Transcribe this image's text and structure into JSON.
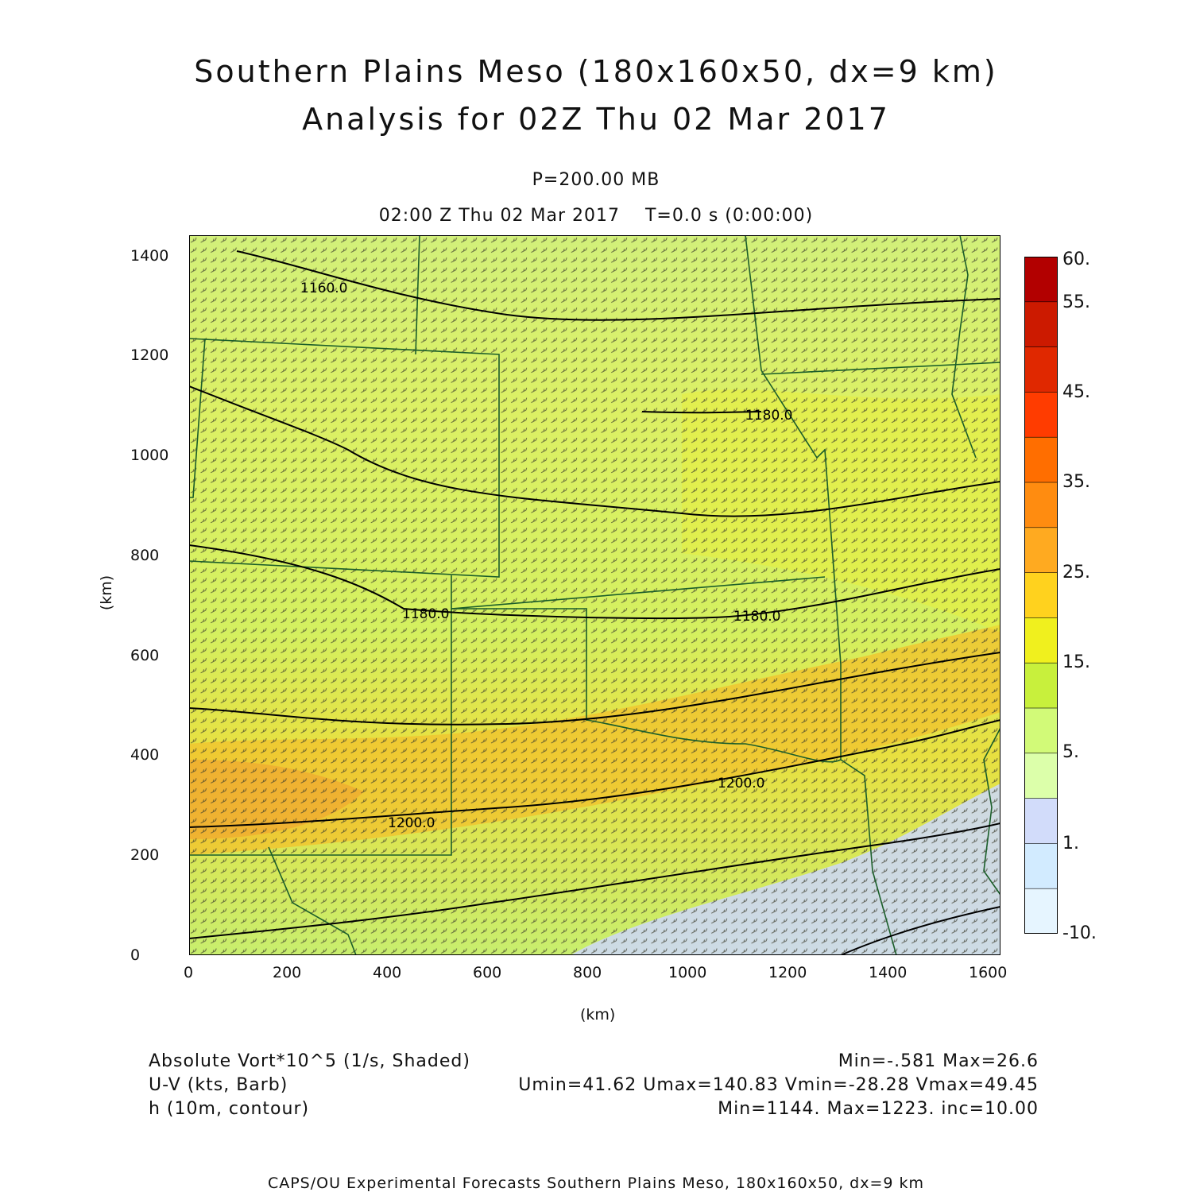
{
  "title": {
    "line1": "Southern Plains Meso (180x160x50, dx=9 km)",
    "line2": "Analysis for 02Z Thu 02 Mar 2017"
  },
  "subtitle": {
    "pressure": "P=200.00 MB",
    "time": "02:00 Z Thu 02 Mar 2017    T=0.0 s (0:00:00)"
  },
  "axes": {
    "xlabel": "(km)",
    "ylabel": "(km)",
    "x_ticks": [
      "0",
      "200",
      "400",
      "600",
      "800",
      "1000",
      "1200",
      "1400",
      "1600"
    ],
    "y_ticks": [
      "0",
      "200",
      "400",
      "600",
      "800",
      "1000",
      "1200",
      "1400"
    ]
  },
  "colorbar": {
    "labels": [
      "60.",
      "55.",
      "45.",
      "35.",
      "25.",
      "15.",
      "5.",
      "1.",
      "-10."
    ],
    "colors": [
      "#b20000",
      "#cc1a00",
      "#e02800",
      "#ff3c00",
      "#ff6e00",
      "#ff8c10",
      "#ffaa20",
      "#ffd21e",
      "#f0f01e",
      "#c8f03c",
      "#d2fa78",
      "#dcffaa",
      "#d2dcfa",
      "#d2ebff",
      "#e6f5ff"
    ]
  },
  "contour_labels": [
    "1160.0",
    "1180.0",
    "1180.0",
    "1180.0",
    "1200.0",
    "1200.0"
  ],
  "legend": {
    "shaded_name": "Absolute Vort*10^5 (1/s, Shaded)",
    "shaded_stats": "Min=-.581 Max=26.6",
    "barb_name": "U-V (kts, Barb)",
    "barb_stats": "Umin=41.62 Umax=140.83 Vmin=-28.28 Vmax=49.45",
    "contour_name": "h (10m, contour)",
    "contour_stats": "Min=1144. Max=1223. inc=10.00"
  },
  "footer": "CAPS/OU Experimental Forecasts  Southern Plains Meso, 180x160x50, dx=9 km"
}
